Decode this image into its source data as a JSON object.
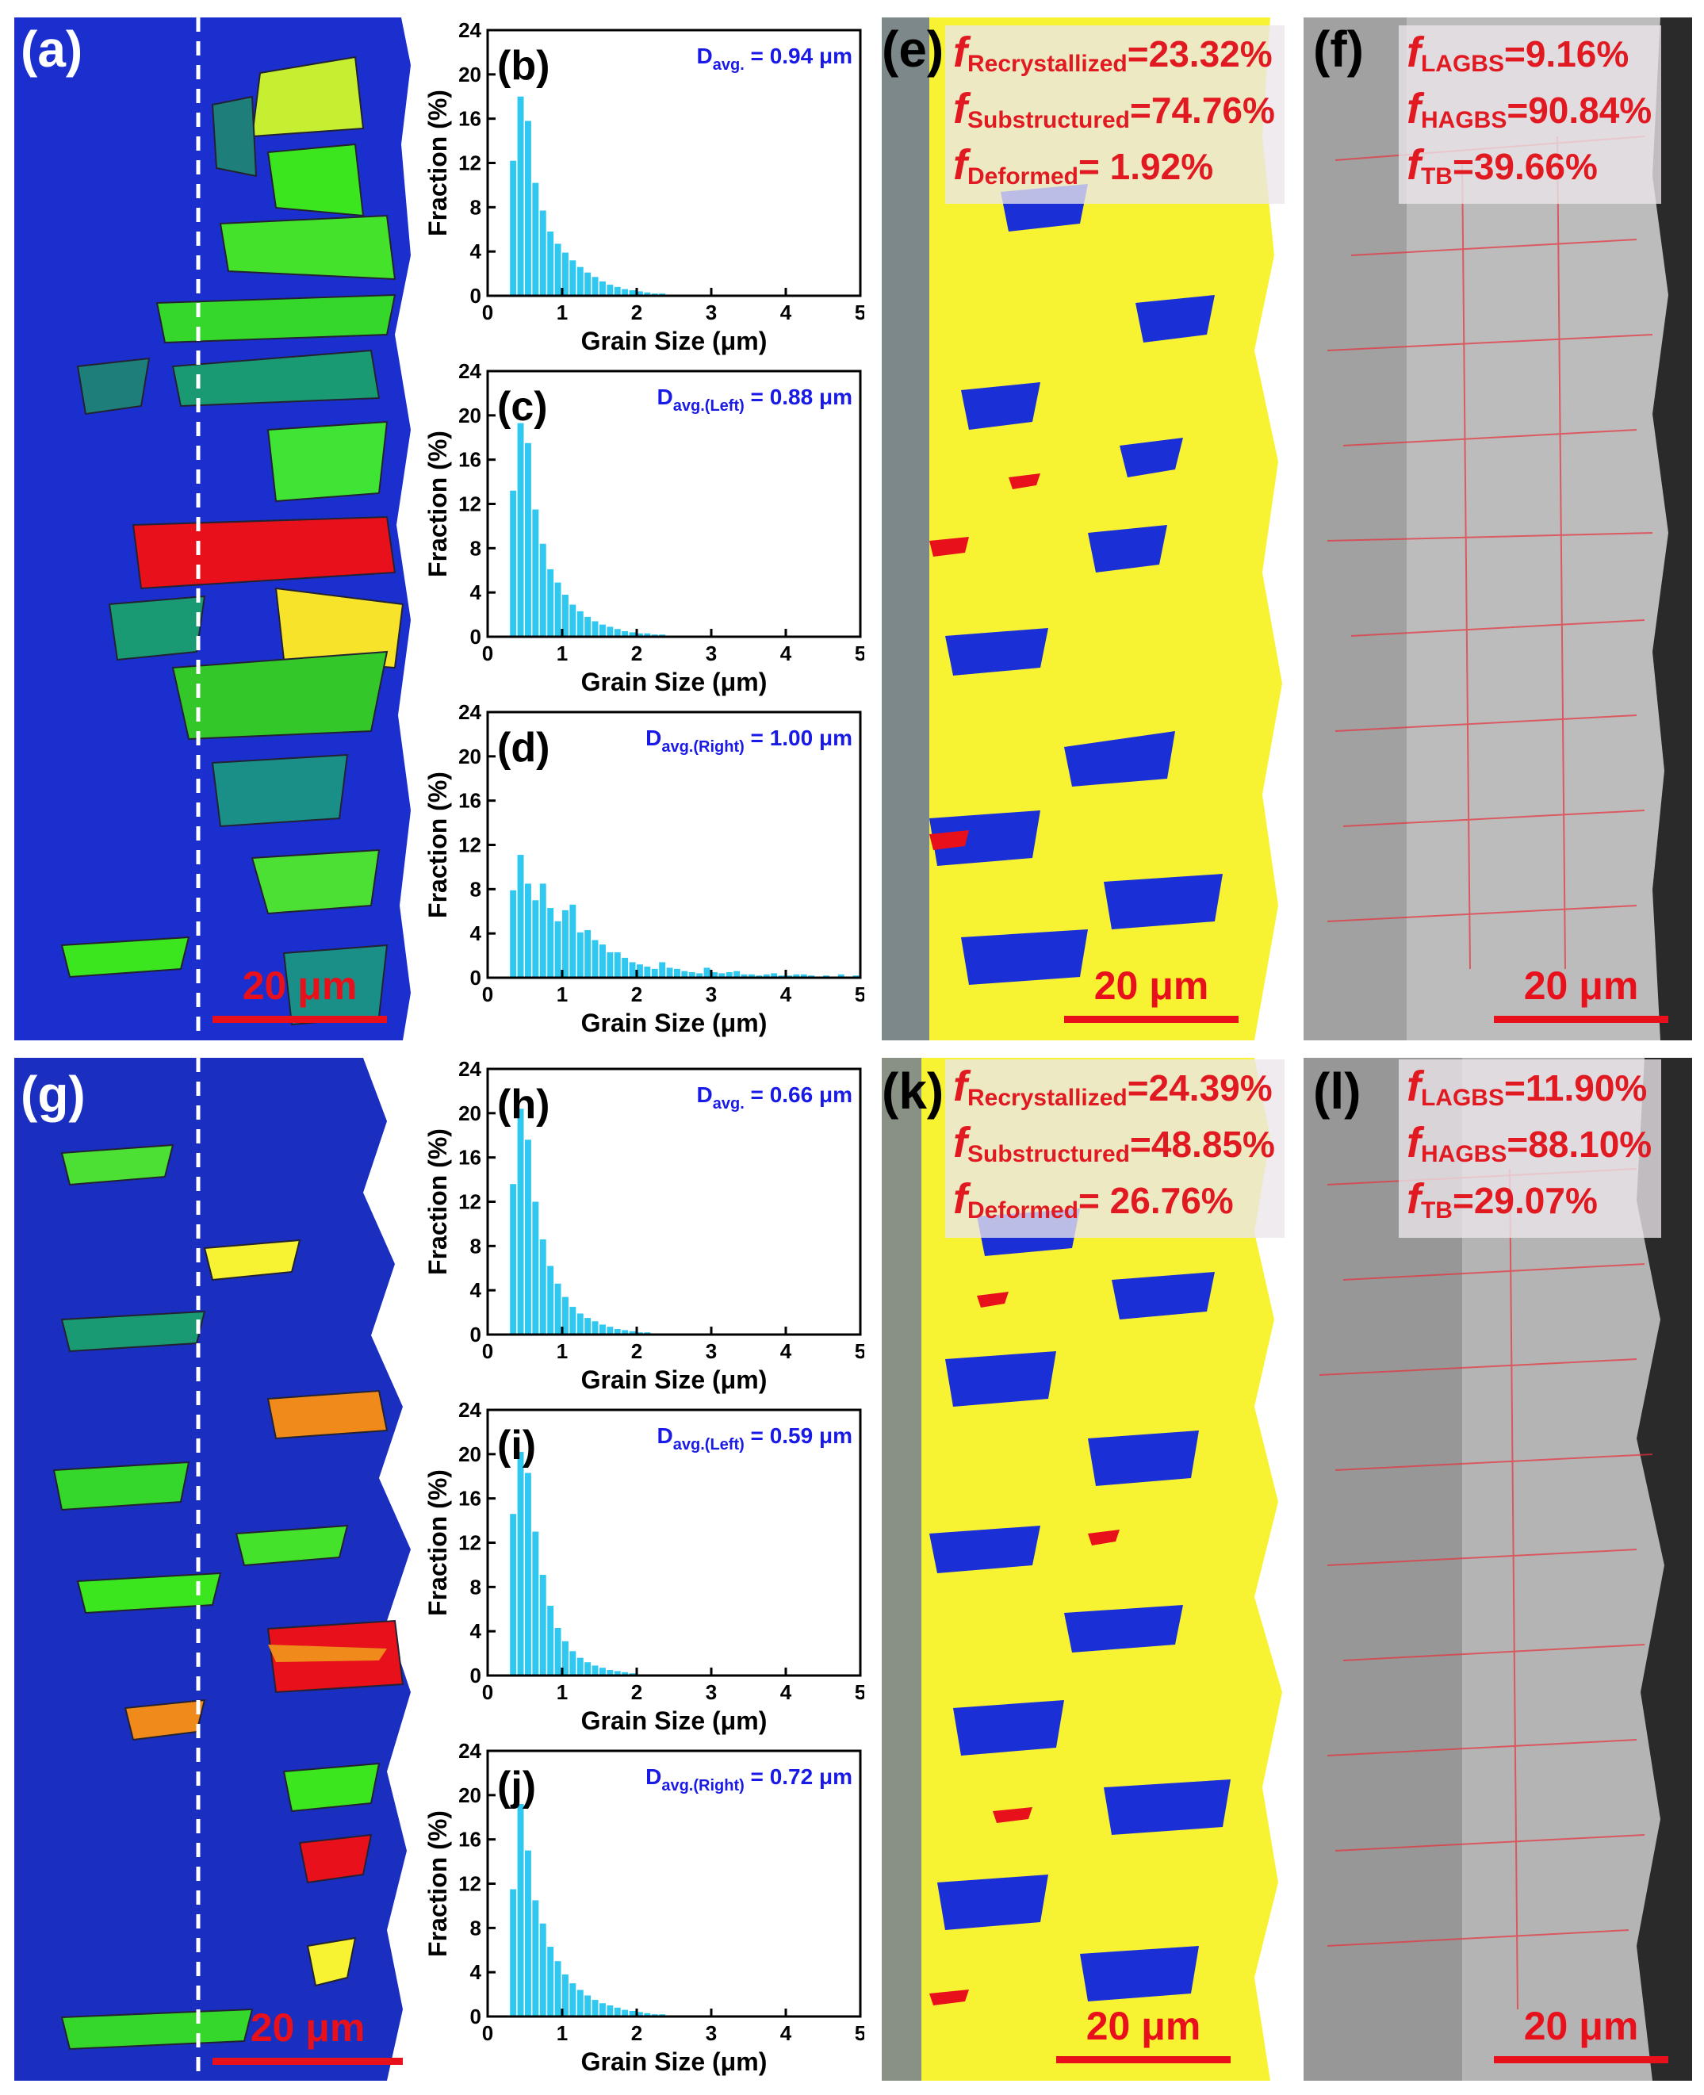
{
  "panels": {
    "a": {
      "label": "(a)",
      "scale": "20 μm"
    },
    "g": {
      "label": "(g)",
      "scale": "20 μm"
    },
    "e": {
      "label": "(e)",
      "scale": "20 μm",
      "fractions": [
        {
          "name": "Recrystallized",
          "value": "=23.32%"
        },
        {
          "name": "Substructured",
          "value": "=74.76%"
        },
        {
          "name": "Deformed",
          "value": "= 1.92%"
        }
      ]
    },
    "k": {
      "label": "(k)",
      "scale": "20 μm",
      "fractions": [
        {
          "name": "Recrystallized",
          "value": "=24.39%"
        },
        {
          "name": "Substructured",
          "value": "=48.85%"
        },
        {
          "name": "Deformed",
          "value": "= 26.76%"
        }
      ]
    },
    "f": {
      "label": "(f)",
      "scale": "20 μm",
      "fractions": [
        {
          "name": "LAGBS",
          "value": "=9.16%"
        },
        {
          "name": "HAGBS",
          "value": "=90.84%"
        },
        {
          "name": "TB",
          "value": "=39.66%"
        }
      ]
    },
    "l": {
      "label": "(l)",
      "scale": "20 μm",
      "fractions": [
        {
          "name": "LAGBS",
          "value": "=11.90%"
        },
        {
          "name": "HAGBS",
          "value": "=88.10%"
        },
        {
          "name": "TB",
          "value": "=29.07%"
        }
      ]
    }
  },
  "colors": {
    "bar": "#2ec8f0",
    "blue": "#1a2fd6",
    "yellow": "#f7f332",
    "red": "#e8101a",
    "avg_text": "#1a1ae6",
    "grey_bg": "#bcbcbc"
  },
  "chart_data": [
    {
      "id": "b",
      "type": "bar",
      "panel_label": "(b)",
      "annotation": "D",
      "annotation_sub": "avg.",
      "annotation_value": " = 0.94 μm",
      "xlabel": "Grain Size (μm)",
      "ylabel": "Fraction (%)",
      "xlim": [
        0,
        5
      ],
      "ylim": [
        0,
        24
      ],
      "xticks": [
        0,
        1,
        2,
        3,
        4,
        5
      ],
      "yticks": [
        0,
        4,
        8,
        12,
        16,
        20,
        24
      ],
      "bin_width": 0.1,
      "bin_start": 0.3,
      "values": [
        12.2,
        18.0,
        15.8,
        10.2,
        7.7,
        5.8,
        4.7,
        3.9,
        3.2,
        2.6,
        2.1,
        1.7,
        1.3,
        1.0,
        0.8,
        0.6,
        0.5,
        0.4,
        0.3,
        0.2,
        0.2,
        0.1,
        0.1,
        0.1,
        0.1
      ]
    },
    {
      "id": "c",
      "type": "bar",
      "panel_label": "(c)",
      "annotation": "D",
      "annotation_sub": "avg.(Left)",
      "annotation_value": " = 0.88 μm",
      "xlabel": "Grain Size (μm)",
      "ylabel": "Fraction (%)",
      "xlim": [
        0,
        5
      ],
      "ylim": [
        0,
        24
      ],
      "xticks": [
        0,
        1,
        2,
        3,
        4,
        5
      ],
      "yticks": [
        0,
        4,
        8,
        12,
        16,
        20,
        24
      ],
      "bin_width": 0.1,
      "bin_start": 0.3,
      "values": [
        13.2,
        19.3,
        17.5,
        11.5,
        8.4,
        6.1,
        4.9,
        3.8,
        2.9,
        2.3,
        1.8,
        1.4,
        1.1,
        0.9,
        0.7,
        0.5,
        0.4,
        0.3,
        0.3,
        0.2,
        0.2,
        0.1,
        0.1,
        0.1,
        0.1
      ]
    },
    {
      "id": "d",
      "type": "bar",
      "panel_label": "(d)",
      "annotation": "D",
      "annotation_sub": "avg.(Right)",
      "annotation_value": " = 1.00 μm",
      "xlabel": "Grain Size (μm)",
      "ylabel": "Fraction (%)",
      "xlim": [
        0,
        5
      ],
      "ylim": [
        0,
        24
      ],
      "xticks": [
        0,
        1,
        2,
        3,
        4,
        5
      ],
      "yticks": [
        0,
        4,
        8,
        12,
        16,
        20,
        24
      ],
      "bin_width": 0.1,
      "bin_start": 0.3,
      "values": [
        7.9,
        11.1,
        8.5,
        7.0,
        8.5,
        6.3,
        5.1,
        6.1,
        6.6,
        4.1,
        4.3,
        3.4,
        3.0,
        2.3,
        2.3,
        1.8,
        1.4,
        1.2,
        1.0,
        0.8,
        1.4,
        0.9,
        0.8,
        0.6,
        0.5,
        0.4,
        0.9,
        0.5,
        0.4,
        0.5,
        0.6,
        0.3,
        0.3,
        0.2,
        0.3,
        0.4,
        0.2,
        0.2,
        0.3,
        0.3,
        0.2,
        0.1,
        0.2,
        0.1,
        0.3,
        0.1,
        0.2
      ]
    },
    {
      "id": "h",
      "type": "bar",
      "panel_label": "(h)",
      "annotation": "D",
      "annotation_sub": "avg.",
      "annotation_value": " = 0.66 μm",
      "xlabel": "Grain Size (μm)",
      "ylabel": "Fraction (%)",
      "xlim": [
        0,
        5
      ],
      "ylim": [
        0,
        24
      ],
      "xticks": [
        0,
        1,
        2,
        3,
        4,
        5
      ],
      "yticks": [
        0,
        4,
        8,
        12,
        16,
        20,
        24
      ],
      "bin_width": 0.1,
      "bin_start": 0.3,
      "values": [
        13.6,
        20.4,
        17.6,
        12.0,
        8.6,
        6.2,
        4.6,
        3.4,
        2.5,
        1.9,
        1.5,
        1.2,
        0.9,
        0.7,
        0.5,
        0.4,
        0.3,
        0.2,
        0.2,
        0.1,
        0.1
      ]
    },
    {
      "id": "i",
      "type": "bar",
      "panel_label": "(i)",
      "annotation": "D",
      "annotation_sub": "avg.(Left)",
      "annotation_value": " = 0.59 μm",
      "xlabel": "Grain Size (μm)",
      "ylabel": "Fraction (%)",
      "xlim": [
        0,
        5
      ],
      "ylim": [
        0,
        24
      ],
      "xticks": [
        0,
        1,
        2,
        3,
        4,
        5
      ],
      "yticks": [
        0,
        4,
        8,
        12,
        16,
        20,
        24
      ],
      "bin_width": 0.1,
      "bin_start": 0.3,
      "values": [
        14.6,
        20.2,
        18.3,
        13.0,
        9.1,
        6.3,
        4.3,
        3.1,
        2.2,
        1.6,
        1.2,
        0.9,
        0.7,
        0.5,
        0.4,
        0.3,
        0.2,
        0.1,
        0.1
      ]
    },
    {
      "id": "j",
      "type": "bar",
      "panel_label": "(j)",
      "annotation": "D",
      "annotation_sub": "avg.(Right)",
      "annotation_value": " = 0.72 μm",
      "xlabel": "Grain Size (μm)",
      "ylabel": "Fraction (%)",
      "xlim": [
        0,
        5
      ],
      "ylim": [
        0,
        24
      ],
      "xticks": [
        0,
        1,
        2,
        3,
        4,
        5
      ],
      "yticks": [
        0,
        4,
        8,
        12,
        16,
        20,
        24
      ],
      "bin_width": 0.1,
      "bin_start": 0.3,
      "values": [
        11.5,
        19.2,
        15.0,
        10.5,
        8.4,
        6.3,
        5.0,
        3.8,
        3.0,
        2.4,
        1.9,
        1.5,
        1.2,
        1.0,
        0.8,
        0.6,
        0.5,
        0.4,
        0.3,
        0.2,
        0.2,
        0.1,
        0.1
      ]
    }
  ]
}
